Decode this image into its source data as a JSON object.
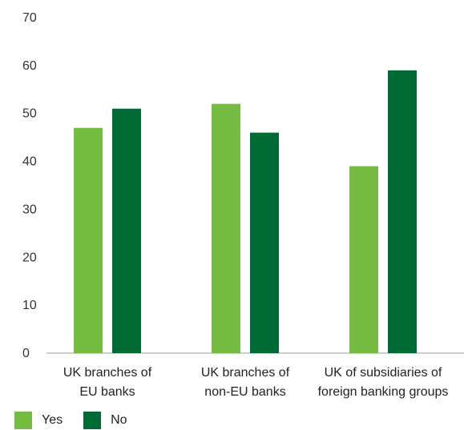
{
  "chart_data": {
    "type": "bar",
    "categories": [
      [
        "UK branches of",
        "EU banks"
      ],
      [
        "UK branches of",
        "non-EU banks"
      ],
      [
        "UK of subsidiaries of",
        "foreign banking groups"
      ]
    ],
    "series": [
      {
        "name": "Yes",
        "color": "#76bc43",
        "values": [
          47,
          52,
          39
        ]
      },
      {
        "name": "No",
        "color": "#006a35",
        "values": [
          51,
          46,
          59
        ]
      }
    ],
    "ylim": [
      0,
      70
    ],
    "yticks": [
      0,
      10,
      20,
      30,
      40,
      50,
      60,
      70
    ],
    "grid": false,
    "legend_position": "bottom-left",
    "title": "",
    "xlabel": "",
    "ylabel": ""
  }
}
